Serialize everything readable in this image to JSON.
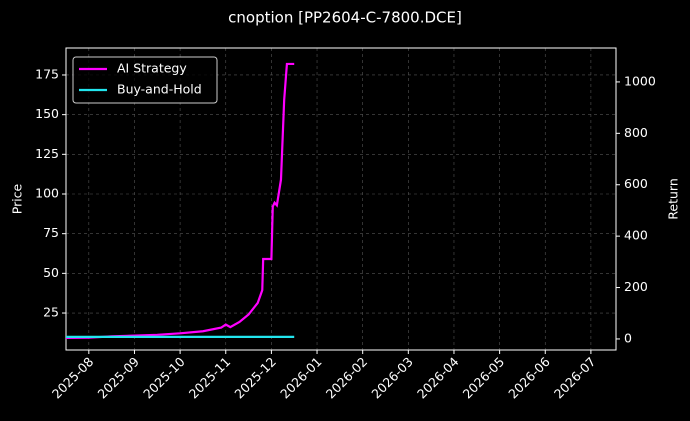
{
  "chart_data": {
    "type": "line",
    "title": "cnoption [PP2604-C-7800.DCE]",
    "y_label": "Price",
    "y2_label": "Return",
    "x": [
      -0.5,
      0,
      0.5,
      1,
      1.5,
      2,
      2.5,
      2.9,
      3.0,
      3.1,
      3.3,
      3.5,
      3.7,
      3.8,
      3.82,
      4.0,
      4.03,
      4.07,
      4.12,
      4.21,
      4.28,
      4.34,
      4.5
    ],
    "xlim": [
      -0.5,
      11.55
    ],
    "xticks": [
      {
        "value": 0,
        "label": "2025-08"
      },
      {
        "value": 1,
        "label": "2025-09"
      },
      {
        "value": 2,
        "label": "2025-10"
      },
      {
        "value": 3,
        "label": "2025-11"
      },
      {
        "value": 4,
        "label": "2025-12"
      },
      {
        "value": 5,
        "label": "2026-01"
      },
      {
        "value": 6,
        "label": "2026-02"
      },
      {
        "value": 7,
        "label": "2026-03"
      },
      {
        "value": 8,
        "label": "2026-04"
      },
      {
        "value": 9,
        "label": "2026-05"
      },
      {
        "value": 10,
        "label": "2026-06"
      },
      {
        "value": 11,
        "label": "2026-07"
      }
    ],
    "ylim": [
      1.7,
      192
    ],
    "yticks": [
      25,
      50,
      75,
      100,
      125,
      150,
      175
    ],
    "y2lim": [
      -43,
      1132
    ],
    "y2ticks": [
      0,
      200,
      400,
      600,
      800,
      1000
    ],
    "grid": true,
    "legend": "upper-left",
    "series": [
      {
        "name": "AI Strategy",
        "color": "#ff00ff",
        "axis": "y2",
        "values": [
          4,
          5,
          10,
          13,
          16,
          22,
          30,
          44,
          56,
          46,
          66,
          95,
          140,
          190,
          311,
          311,
          515,
          530,
          520,
          620,
          930,
          1070,
          1070
        ]
      },
      {
        "name": "Buy-and-Hold",
        "color": "#22e5ee",
        "axis": "y2",
        "values": [
          8,
          8,
          8,
          8,
          8,
          8,
          8,
          8,
          8,
          8,
          8,
          8,
          8,
          8,
          8,
          8,
          8,
          8,
          8,
          8,
          8,
          8,
          8
        ]
      }
    ]
  }
}
